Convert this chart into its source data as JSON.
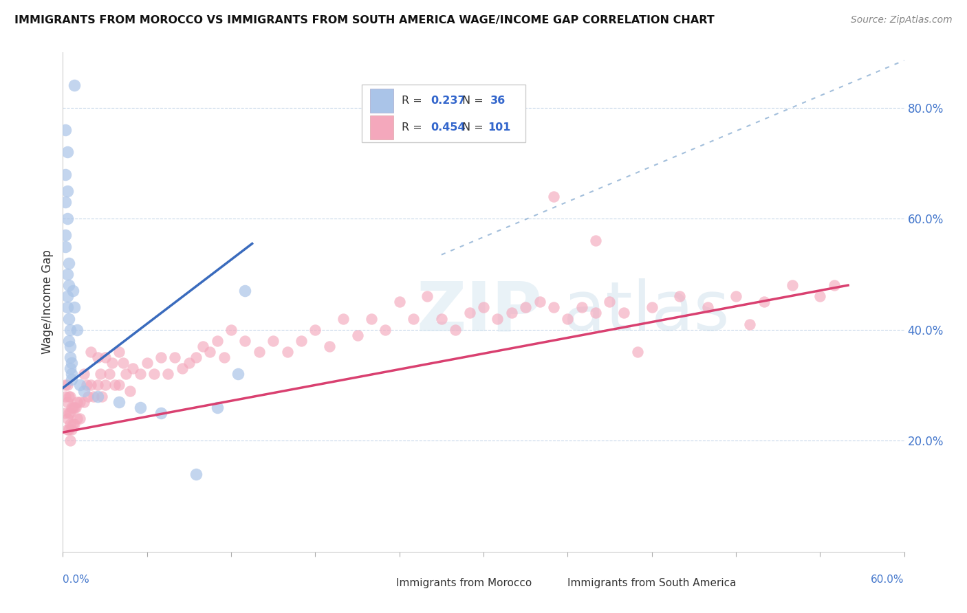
{
  "title": "IMMIGRANTS FROM MOROCCO VS IMMIGRANTS FROM SOUTH AMERICA WAGE/INCOME GAP CORRELATION CHART",
  "source": "Source: ZipAtlas.com",
  "ylabel": "Wage/Income Gap",
  "ylabel_right_ticks": [
    "20.0%",
    "40.0%",
    "60.0%",
    "80.0%"
  ],
  "ylabel_right_vals": [
    0.2,
    0.4,
    0.6,
    0.8
  ],
  "legend_label_morocco": "Immigrants from Morocco",
  "legend_label_sa": "Immigrants from South America",
  "morocco_color": "#aac4e8",
  "sa_color": "#f4a8bc",
  "morocco_line_color": "#3a6bbd",
  "sa_line_color": "#d94070",
  "ref_line_color": "#99b8d8",
  "xlim": [
    0.0,
    0.6
  ],
  "ylim": [
    0.0,
    0.9
  ],
  "morocco_r": "0.237",
  "morocco_n": "36",
  "sa_r": "0.454",
  "sa_n": "101",
  "morocco_x": [
    0.008,
    0.002,
    0.003,
    0.002,
    0.003,
    0.002,
    0.003,
    0.002,
    0.002,
    0.004,
    0.003,
    0.004,
    0.003,
    0.003,
    0.004,
    0.005,
    0.004,
    0.005,
    0.005,
    0.006,
    0.005,
    0.006,
    0.006,
    0.007,
    0.008,
    0.01,
    0.012,
    0.015,
    0.025,
    0.04,
    0.055,
    0.07,
    0.095,
    0.11,
    0.125,
    0.13
  ],
  "morocco_y": [
    0.84,
    0.76,
    0.72,
    0.68,
    0.65,
    0.63,
    0.6,
    0.57,
    0.55,
    0.52,
    0.5,
    0.48,
    0.46,
    0.44,
    0.42,
    0.4,
    0.38,
    0.37,
    0.35,
    0.34,
    0.33,
    0.32,
    0.31,
    0.47,
    0.44,
    0.4,
    0.3,
    0.29,
    0.28,
    0.27,
    0.26,
    0.25,
    0.14,
    0.26,
    0.32,
    0.47
  ],
  "sa_x": [
    0.002,
    0.002,
    0.002,
    0.003,
    0.003,
    0.003,
    0.003,
    0.004,
    0.004,
    0.004,
    0.005,
    0.005,
    0.005,
    0.005,
    0.006,
    0.006,
    0.007,
    0.007,
    0.008,
    0.008,
    0.009,
    0.01,
    0.01,
    0.012,
    0.012,
    0.015,
    0.015,
    0.017,
    0.018,
    0.02,
    0.02,
    0.022,
    0.025,
    0.025,
    0.027,
    0.028,
    0.03,
    0.03,
    0.033,
    0.035,
    0.037,
    0.04,
    0.04,
    0.043,
    0.045,
    0.048,
    0.05,
    0.055,
    0.06,
    0.065,
    0.07,
    0.075,
    0.08,
    0.085,
    0.09,
    0.095,
    0.1,
    0.105,
    0.11,
    0.115,
    0.12,
    0.13,
    0.14,
    0.15,
    0.16,
    0.17,
    0.18,
    0.19,
    0.2,
    0.21,
    0.22,
    0.23,
    0.24,
    0.25,
    0.26,
    0.27,
    0.28,
    0.29,
    0.3,
    0.31,
    0.32,
    0.33,
    0.34,
    0.35,
    0.36,
    0.37,
    0.38,
    0.39,
    0.4,
    0.42,
    0.44,
    0.46,
    0.48,
    0.5,
    0.52,
    0.54,
    0.55,
    0.49,
    0.41,
    0.38,
    0.35
  ],
  "sa_y": [
    0.3,
    0.28,
    0.25,
    0.3,
    0.27,
    0.24,
    0.22,
    0.28,
    0.25,
    0.22,
    0.28,
    0.25,
    0.23,
    0.2,
    0.26,
    0.22,
    0.26,
    0.23,
    0.26,
    0.23,
    0.26,
    0.27,
    0.24,
    0.27,
    0.24,
    0.32,
    0.27,
    0.3,
    0.28,
    0.36,
    0.3,
    0.28,
    0.35,
    0.3,
    0.32,
    0.28,
    0.35,
    0.3,
    0.32,
    0.34,
    0.3,
    0.36,
    0.3,
    0.34,
    0.32,
    0.29,
    0.33,
    0.32,
    0.34,
    0.32,
    0.35,
    0.32,
    0.35,
    0.33,
    0.34,
    0.35,
    0.37,
    0.36,
    0.38,
    0.35,
    0.4,
    0.38,
    0.36,
    0.38,
    0.36,
    0.38,
    0.4,
    0.37,
    0.42,
    0.39,
    0.42,
    0.4,
    0.45,
    0.42,
    0.46,
    0.42,
    0.4,
    0.43,
    0.44,
    0.42,
    0.43,
    0.44,
    0.45,
    0.44,
    0.42,
    0.44,
    0.43,
    0.45,
    0.43,
    0.44,
    0.46,
    0.44,
    0.46,
    0.45,
    0.48,
    0.46,
    0.48,
    0.41,
    0.36,
    0.56,
    0.64
  ]
}
